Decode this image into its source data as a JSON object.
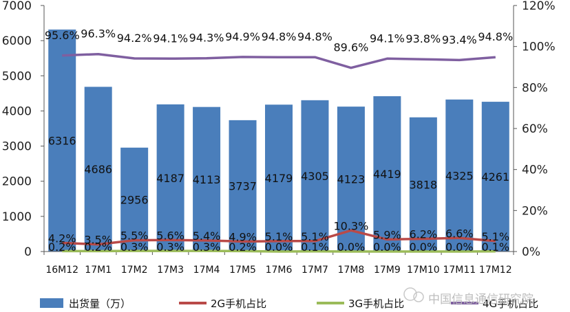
{
  "chart_data": {
    "type": "bar",
    "categories": [
      "16M12",
      "17M1",
      "17M2",
      "17M3",
      "17M4",
      "17M5",
      "17M6",
      "17M7",
      "17M8",
      "17M9",
      "17M10",
      "17M11",
      "17M12"
    ],
    "ylim": [
      0,
      7000
    ],
    "y_ticks": [
      "0",
      "1000",
      "2000",
      "3000",
      "4000",
      "5000",
      "6000",
      "7000"
    ],
    "y2lim": [
      0,
      120
    ],
    "y2_ticks": [
      "0%",
      "20%",
      "40%",
      "60%",
      "80%",
      "100%",
      "120%"
    ],
    "grid": false,
    "legend_position": "bottom",
    "series": [
      {
        "name": "出货量（万）",
        "type": "bar",
        "axis": "left",
        "color": "#4a7ebb",
        "values": [
          6316,
          4686,
          2956,
          4187,
          4113,
          3737,
          4179,
          4305,
          4123,
          4419,
          3818,
          4325,
          4261
        ],
        "labels": [
          "6316",
          "4686",
          "2956",
          "4187",
          "4113",
          "3737",
          "4179",
          "4305",
          "4123",
          "4419",
          "3818",
          "4325",
          "4261"
        ]
      },
      {
        "name": "2G手机占比",
        "type": "line",
        "axis": "right",
        "color": "#b94a48",
        "values": [
          4.2,
          3.5,
          5.5,
          5.6,
          5.4,
          4.9,
          5.1,
          5.1,
          10.3,
          5.9,
          6.2,
          6.6,
          5.1
        ],
        "labels": [
          "4.2%",
          "3.5%",
          "5.5%",
          "5.6%",
          "5.4%",
          "4.9%",
          "5.1%",
          "5.1%",
          "10.3%",
          "5.9%",
          "6.2%",
          "6.6%",
          "5.1%"
        ]
      },
      {
        "name": "3G手机占比",
        "type": "line",
        "axis": "right",
        "color": "#9bbb59",
        "values": [
          0.2,
          0.2,
          0.3,
          0.3,
          0.3,
          0.2,
          0.0,
          0.1,
          0.0,
          0.0,
          0.0,
          0.0,
          0.1
        ],
        "labels": [
          "0.2%",
          "0.2%",
          "0.3%",
          "0.3%",
          "0.3%",
          "0.2%",
          "0.0%",
          "0.1%",
          "0.0%",
          "0.0%",
          "0.0%",
          "0.0%",
          "0.1%"
        ]
      },
      {
        "name": "4G手机占比",
        "type": "line",
        "axis": "right",
        "color": "#7f5fa0",
        "values": [
          95.6,
          96.3,
          94.2,
          94.1,
          94.3,
          94.9,
          94.8,
          94.8,
          89.6,
          94.1,
          93.8,
          93.4,
          94.8
        ],
        "labels": [
          "95.6%",
          "96.3%",
          "94.2%",
          "94.1%",
          "94.3%",
          "94.9%",
          "94.8%",
          "94.8%",
          "89.6%",
          "94.1%",
          "93.8%",
          "93.4%",
          "94.8%"
        ]
      }
    ]
  },
  "watermark": "中国信息通信研究院"
}
